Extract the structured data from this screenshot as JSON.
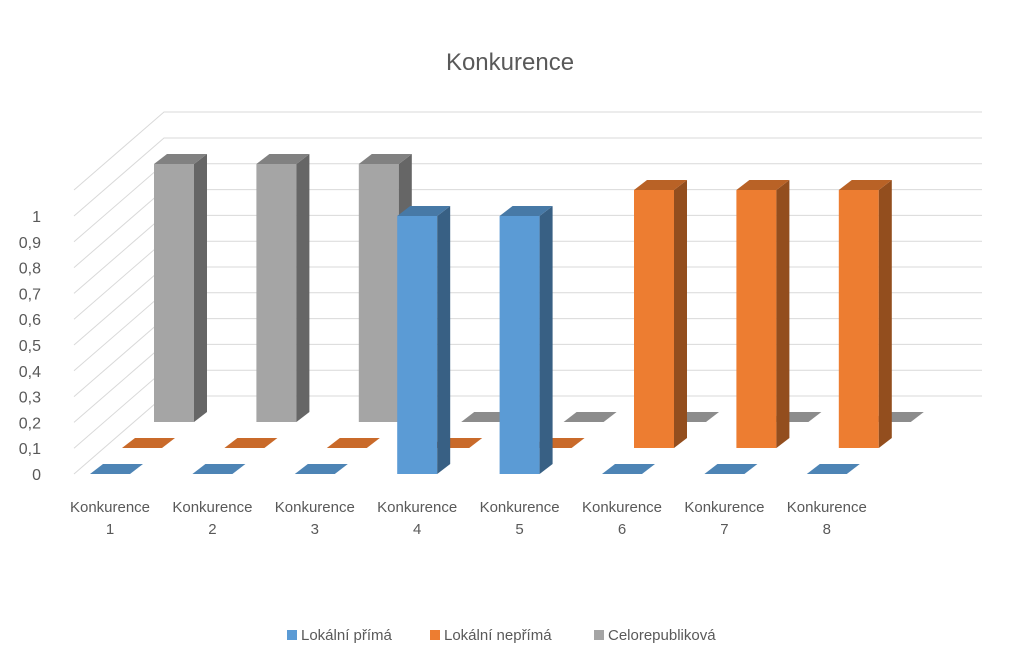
{
  "chart_data": {
    "type": "bar",
    "title": "Konkurence",
    "categories": [
      [
        "Konkurence",
        "1"
      ],
      [
        "Konkurence",
        "2"
      ],
      [
        "Konkurence",
        "3"
      ],
      [
        "Konkurence",
        "4"
      ],
      [
        "Konkurence",
        "5"
      ],
      [
        "Konkurence",
        "6"
      ],
      [
        "Konkurence",
        "7"
      ],
      [
        "Konkurence",
        "8"
      ]
    ],
    "series": [
      {
        "name": "Lokální přímá",
        "values": [
          0,
          0,
          0,
          1,
          1,
          0,
          0,
          0
        ],
        "color": "#5B9BD5"
      },
      {
        "name": "Lokální nepřímá",
        "values": [
          0,
          0,
          0,
          0,
          0,
          1,
          1,
          1
        ],
        "color": "#ED7D31"
      },
      {
        "name": "Celorepubliková",
        "values": [
          1,
          1,
          1,
          0,
          0,
          0,
          0,
          0
        ],
        "color": "#A5A5A5"
      }
    ],
    "yticks": [
      "0",
      "0,1",
      "0,2",
      "0,3",
      "0,4",
      "0,5",
      "0,6",
      "0,7",
      "0,8",
      "0,9",
      "1"
    ],
    "ylim": [
      0,
      1
    ],
    "grid": true,
    "legend": "bottom",
    "projection": "3d-clustered"
  }
}
